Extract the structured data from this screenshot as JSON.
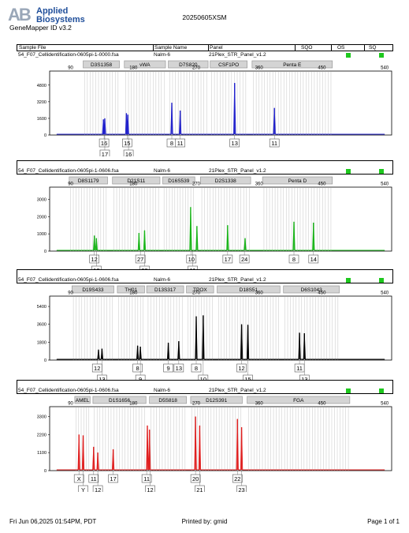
{
  "header": {
    "logo_mark": "AB",
    "logo_line1": "Applied",
    "logo_line2": "Biosystems",
    "app_name": "GeneMapper ID v3.2",
    "title": "20250605XSM"
  },
  "columns": {
    "sample_file": "Sample File",
    "sample_name": "Sample Name",
    "panel": "Panel",
    "sqo": "SQO",
    "os": "OS",
    "sq": "SQ"
  },
  "colors": {
    "blue": "#2222cc",
    "green": "#19b419",
    "black": "#000000",
    "red": "#e02020",
    "ok": "#1ec81e"
  },
  "footer": {
    "date": "Fri Jun 06,2025 01:54PM, PDT",
    "printed_by": "Printed by: gmid",
    "page": "Page 1 of 1"
  },
  "chart_data": [
    {
      "type": "line",
      "sample_file": "54_F07_Cellidentification-0605pi-1-0000.fsa",
      "sample_name": "Nalm-6",
      "panel": "21Plex_STR_Panel_v1.2",
      "color": "#2222cc",
      "x_ticks": [
        90,
        180,
        270,
        360,
        450,
        540
      ],
      "xlim": [
        60,
        550
      ],
      "y_ticks": [
        0,
        1600,
        3200,
        4800
      ],
      "ylim": [
        0,
        6300
      ],
      "loci": [
        {
          "name": "D3S1358",
          "start": 108,
          "end": 160
        },
        {
          "name": "vWA",
          "start": 167,
          "end": 226
        },
        {
          "name": "D7S820",
          "start": 230,
          "end": 287
        },
        {
          "name": "CSF1PO",
          "start": 290,
          "end": 343
        },
        {
          "name": "Penta E",
          "start": 350,
          "end": 465
        }
      ],
      "peaks": [
        {
          "x": 137,
          "h": 1500
        },
        {
          "x": 139,
          "h": 1600
        },
        {
          "x": 170,
          "h": 2100
        },
        {
          "x": 172,
          "h": 1950
        },
        {
          "x": 235,
          "h": 3100
        },
        {
          "x": 247,
          "h": 2350
        },
        {
          "x": 325,
          "h": 5000
        },
        {
          "x": 382,
          "h": 2600
        }
      ],
      "alleles_row1": [
        {
          "x": 138,
          "label": "16"
        },
        {
          "x": 171,
          "label": "15"
        },
        {
          "x": 235,
          "label": "8"
        },
        {
          "x": 247,
          "label": "11"
        },
        {
          "x": 325,
          "label": "13"
        },
        {
          "x": 382,
          "label": "11"
        }
      ],
      "alleles_row2": [
        {
          "x": 139,
          "label": "17"
        },
        {
          "x": 173,
          "label": "16"
        }
      ]
    },
    {
      "type": "line",
      "sample_file": "54_F07_Cellidentification-0605pi-1-0606.fsa",
      "sample_name": "Nalm-6",
      "panel": "21Plex_STR_Panel_v1.2",
      "color": "#19b419",
      "x_ticks": [
        90,
        180,
        270,
        360,
        450,
        540
      ],
      "xlim": [
        60,
        550
      ],
      "y_ticks": [
        0,
        1000,
        2000,
        3000
      ],
      "ylim": [
        0,
        3800
      ],
      "loci": [
        {
          "name": "D8S1179",
          "start": 88,
          "end": 143
        },
        {
          "name": "D21S11",
          "start": 150,
          "end": 218
        },
        {
          "name": "D16S539",
          "start": 222,
          "end": 268
        },
        {
          "name": "D2S1338",
          "start": 276,
          "end": 348
        },
        {
          "name": "Penta D",
          "start": 365,
          "end": 465
        }
      ],
      "peaks": [
        {
          "x": 124,
          "h": 900
        },
        {
          "x": 127,
          "h": 750
        },
        {
          "x": 188,
          "h": 1050
        },
        {
          "x": 196,
          "h": 1200
        },
        {
          "x": 262,
          "h": 2550
        },
        {
          "x": 271,
          "h": 1450
        },
        {
          "x": 315,
          "h": 1500
        },
        {
          "x": 340,
          "h": 750
        },
        {
          "x": 410,
          "h": 1700
        },
        {
          "x": 438,
          "h": 1650
        }
      ],
      "alleles_row1": [
        {
          "x": 124,
          "label": "12"
        },
        {
          "x": 190,
          "label": "27"
        },
        {
          "x": 263,
          "label": "10"
        },
        {
          "x": 315,
          "label": "17"
        },
        {
          "x": 339,
          "label": "24"
        },
        {
          "x": 410,
          "label": "8"
        },
        {
          "x": 438,
          "label": "14"
        }
      ],
      "alleles_row2": [
        {
          "x": 127,
          "label": "13"
        },
        {
          "x": 196,
          "label": "29"
        },
        {
          "x": 265,
          "label": "11"
        }
      ]
    },
    {
      "type": "line",
      "sample_file": "54_F07_Cellidentification-0605pi-1-0606.fsa",
      "sample_name": "Nalm-6",
      "panel": "21Plex_STR_Panel_v1.2",
      "color": "#000000",
      "x_ticks": [
        90,
        180,
        270,
        360,
        450,
        540
      ],
      "xlim": [
        60,
        550
      ],
      "y_ticks": [
        0,
        1800,
        3600,
        5400
      ],
      "ylim": [
        0,
        6600
      ],
      "loci": [
        {
          "name": "D19S433",
          "start": 92,
          "end": 152
        },
        {
          "name": "TH01",
          "start": 157,
          "end": 196
        },
        {
          "name": "D13S317",
          "start": 199,
          "end": 252
        },
        {
          "name": "TPOX",
          "start": 256,
          "end": 295
        },
        {
          "name": "D18S51",
          "start": 300,
          "end": 390
        },
        {
          "name": "D6S1043",
          "start": 395,
          "end": 475
        }
      ],
      "peaks": [
        {
          "x": 130,
          "h": 1050
        },
        {
          "x": 135,
          "h": 1150
        },
        {
          "x": 186,
          "h": 1450
        },
        {
          "x": 190,
          "h": 1350
        },
        {
          "x": 230,
          "h": 1750
        },
        {
          "x": 245,
          "h": 1900
        },
        {
          "x": 270,
          "h": 4400
        },
        {
          "x": 280,
          "h": 4500
        },
        {
          "x": 335,
          "h": 3600
        },
        {
          "x": 344,
          "h": 3550
        },
        {
          "x": 418,
          "h": 2750
        },
        {
          "x": 425,
          "h": 2700
        }
      ],
      "alleles_row1": [
        {
          "x": 128,
          "label": "12"
        },
        {
          "x": 186,
          "label": "8"
        },
        {
          "x": 230,
          "label": "9"
        },
        {
          "x": 245,
          "label": "13"
        },
        {
          "x": 270,
          "label": "8"
        },
        {
          "x": 335,
          "label": "12"
        },
        {
          "x": 418,
          "label": "11"
        }
      ],
      "alleles_row2": [
        {
          "x": 135,
          "label": "13"
        },
        {
          "x": 190,
          "label": "9"
        },
        {
          "x": 280,
          "label": "10"
        },
        {
          "x": 344,
          "label": "15"
        },
        {
          "x": 425,
          "label": "13"
        }
      ]
    },
    {
      "type": "line",
      "sample_file": "54_F07_Cellidentification-0605pi-1-0606.fsa",
      "sample_name": "Nalm-6",
      "panel": "21Plex_STR_Panel_v1.2",
      "color": "#e02020",
      "x_ticks": [
        90,
        180,
        270,
        360,
        450,
        540
      ],
      "xlim": [
        60,
        550
      ],
      "y_ticks": [
        0,
        1100,
        2200,
        3300
      ],
      "ylim": [
        0,
        4000
      ],
      "loci": [
        {
          "name": "AMEL",
          "start": 96,
          "end": 118
        },
        {
          "name": "D1S1656",
          "start": 122,
          "end": 198
        },
        {
          "name": "D5S818",
          "start": 203,
          "end": 256
        },
        {
          "name": "D12S391",
          "start": 262,
          "end": 336
        },
        {
          "name": "FGA",
          "start": 343,
          "end": 490
        }
      ],
      "peaks": [
        {
          "x": 102,
          "h": 2200
        },
        {
          "x": 108,
          "h": 2150
        },
        {
          "x": 123,
          "h": 1450
        },
        {
          "x": 129,
          "h": 1100
        },
        {
          "x": 151,
          "h": 1300
        },
        {
          "x": 200,
          "h": 2750
        },
        {
          "x": 203,
          "h": 2500
        },
        {
          "x": 269,
          "h": 3300
        },
        {
          "x": 275,
          "h": 2750
        },
        {
          "x": 329,
          "h": 3150
        },
        {
          "x": 335,
          "h": 2650
        }
      ],
      "alleles_row1": [
        {
          "x": 102,
          "label": "X"
        },
        {
          "x": 123,
          "label": "11"
        },
        {
          "x": 151,
          "label": "17"
        },
        {
          "x": 199,
          "label": "11"
        },
        {
          "x": 269,
          "label": "20"
        },
        {
          "x": 329,
          "label": "22"
        }
      ],
      "alleles_row2": [
        {
          "x": 108,
          "label": "Y"
        },
        {
          "x": 129,
          "label": "12"
        },
        {
          "x": 204,
          "label": "12"
        },
        {
          "x": 275,
          "label": "21"
        },
        {
          "x": 335,
          "label": "23"
        }
      ]
    }
  ]
}
